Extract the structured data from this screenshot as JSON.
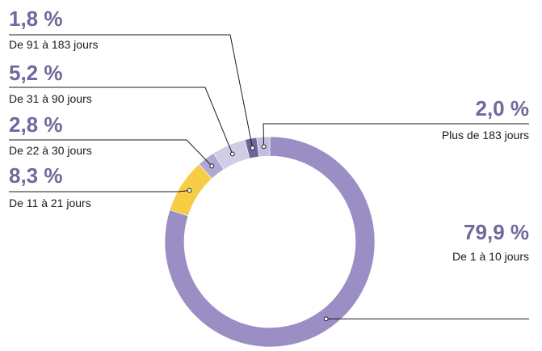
{
  "chart_data": {
    "type": "donut",
    "title": "",
    "unit": "%",
    "slices": [
      {
        "value_label": "79,9 %",
        "value": 79.9,
        "label": "De 1 à 10 jours",
        "color": "#9b8ec4"
      },
      {
        "value_label": "8,3 %",
        "value": 8.3,
        "label": "De 11 à 21 jours",
        "color": "#f8cd46"
      },
      {
        "value_label": "2,8 %",
        "value": 2.8,
        "label": "De 22 à 30 jours",
        "color": "#b1a8d3"
      },
      {
        "value_label": "5,2 %",
        "value": 5.2,
        "label": "De 31 à 90 jours",
        "color": "#d2cce6"
      },
      {
        "value_label": "1,8 %",
        "value": 1.8,
        "label": "De 91 à 183 jours",
        "color": "#6f6596"
      },
      {
        "value_label": "2,0 %",
        "value": 2.0,
        "label": "Plus de 183 jours",
        "color": "#c4bddf"
      }
    ]
  },
  "colors": {
    "label_accent": "#706a9c",
    "leader_line": "#1a1a1a",
    "leader_dot": "#ffffff"
  }
}
